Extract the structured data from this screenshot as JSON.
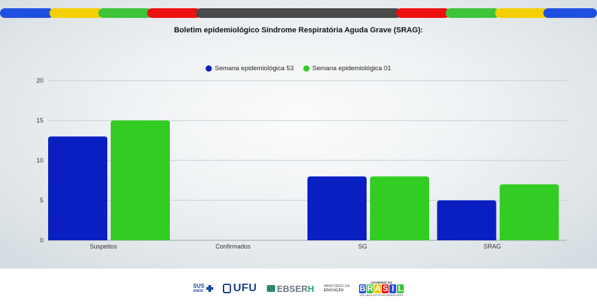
{
  "chart_data": {
    "type": "bar",
    "title": "Boletim epidemiológico Síndrome Respiratória Aguda Grave (SRAG):",
    "categories": [
      "Suspeitos",
      "Confirmados",
      "SG",
      "SRAG"
    ],
    "series": [
      {
        "name": "Semana epidemiológica 53",
        "color": "#0a1fc2",
        "values": [
          13,
          0,
          8,
          5
        ]
      },
      {
        "name": "Semana epidemiológica 01",
        "color": "#33cc22",
        "values": [
          15,
          0,
          8,
          7
        ]
      }
    ],
    "ylim": [
      0,
      20
    ],
    "yticks": [
      "0",
      "5",
      "10",
      "15",
      "20"
    ],
    "grid": true,
    "legend_position": "top-center",
    "xlabel": "",
    "ylabel": ""
  },
  "top_bar_colors": {
    "blue": "#1f4fe0",
    "yellow": "#f5d000",
    "green": "#3ec43a",
    "red": "#ee1111",
    "gray": "#4a4a4a"
  },
  "footer": {
    "sus": {
      "line1": "SUS",
      "line2": "ANOS"
    },
    "ufu": "UFU",
    "ebserh": {
      "main": "EBSER",
      "h": "H"
    },
    "ministerio": {
      "line1": "MINISTÉRIO DA",
      "line2": "EDUCAÇÃO"
    },
    "governo": {
      "top": "GOVERNO DO",
      "letters": [
        "B",
        "R",
        "A",
        "S",
        "I",
        "L"
      ],
      "bottom": "DO LADO DO POVO BRASILEIRO"
    }
  }
}
